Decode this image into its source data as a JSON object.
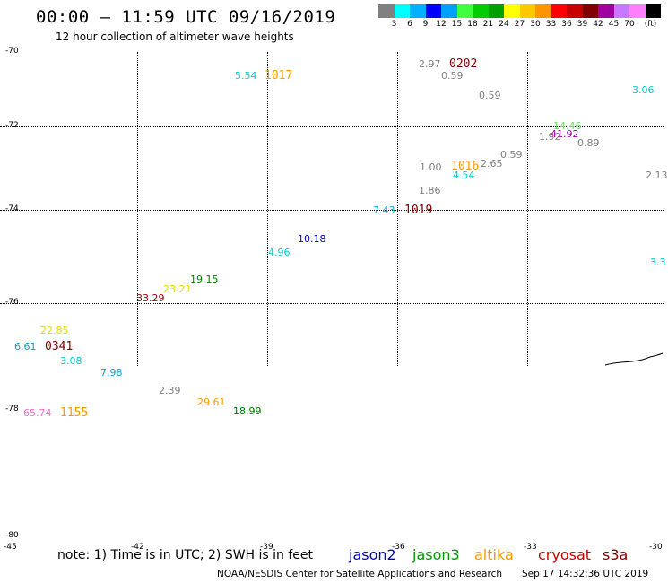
{
  "title": "00:00 – 11:59 UTC 09/16/2019",
  "subtitle": "12 hour collection of altimeter wave heights",
  "legend": {
    "colors": [
      "#808080",
      "#00ffff",
      "#00b0ff",
      "#0000ff",
      "#00a0ff",
      "#40ff40",
      "#00cc00",
      "#00a000",
      "#ffff00",
      "#ffc800",
      "#ff9600",
      "#ff0000",
      "#c80000",
      "#800000",
      "#a000a0",
      "#c878ff",
      "#ff80ff",
      "#000000"
    ],
    "labels": [
      "3",
      "6",
      "9",
      "12",
      "15",
      "18",
      "21",
      "24",
      "27",
      "30",
      "33",
      "36",
      "39",
      "42",
      "45",
      "70",
      "(ft)"
    ],
    "unit": "(ft)"
  },
  "axis": {
    "lat_labels": [
      "-70",
      "-72",
      "-74",
      "-76",
      "-78",
      "-80"
    ],
    "lon_labels": [
      "-45",
      "-42",
      "-39",
      "-36",
      "-33",
      "-30"
    ]
  },
  "observations": [
    {
      "text": "5.54",
      "color": "#00cccc"
    },
    {
      "text": "2.97",
      "color": "#808080"
    },
    {
      "text": "0.59",
      "color": "#808080"
    },
    {
      "text": "0.59",
      "color": "#808080"
    },
    {
      "text": "3.06",
      "color": "#00cccc"
    },
    {
      "text": "14.46",
      "color": "#66dd66"
    },
    {
      "text": "1.92",
      "color": "#808080"
    },
    {
      "text": "41.92",
      "color": "#a000a0"
    },
    {
      "text": "0.89",
      "color": "#808080"
    },
    {
      "text": "0.59",
      "color": "#808080"
    },
    {
      "text": "2.65",
      "color": "#808080"
    },
    {
      "text": "1.00",
      "color": "#808080"
    },
    {
      "text": "4.54",
      "color": "#00cccc"
    },
    {
      "text": "2.13",
      "color": "#808080"
    },
    {
      "text": "1.86",
      "color": "#808080"
    },
    {
      "text": "7.43",
      "color": "#00b0d0"
    },
    {
      "text": "10.18",
      "color": "#0000cc"
    },
    {
      "text": "4.96",
      "color": "#00cccc"
    },
    {
      "text": "3.3",
      "color": "#00cccc"
    },
    {
      "text": "19.15",
      "color": "#008000"
    },
    {
      "text": "23.21",
      "color": "#dddd00"
    },
    {
      "text": "33.29",
      "color": "#990000"
    },
    {
      "text": "22.85",
      "color": "#dddd00"
    },
    {
      "text": "6.61",
      "color": "#00a0d0"
    },
    {
      "text": "3.08",
      "color": "#00cccc"
    },
    {
      "text": "7.98",
      "color": "#00a0d0"
    },
    {
      "text": "2.39",
      "color": "#808080"
    },
    {
      "text": "29.61",
      "color": "#ff9900"
    },
    {
      "text": "18.99",
      "color": "#008000"
    },
    {
      "text": "65.74",
      "color": "#ff66cc"
    }
  ],
  "time_labels": [
    {
      "text": "1017",
      "color": "#ff9900"
    },
    {
      "text": "0202",
      "color": "#800000"
    },
    {
      "text": "1016",
      "color": "#ff9900"
    },
    {
      "text": "1019",
      "color": "#800000"
    },
    {
      "text": "0341",
      "color": "#800000"
    },
    {
      "text": "1155",
      "color": "#ff9900"
    }
  ],
  "footer": {
    "note": "note: 1) Time is in UTC; 2) SWH is in feet",
    "satellites": [
      {
        "name": "jason2",
        "color": "#0000cc"
      },
      {
        "name": "jason3",
        "color": "#009900"
      },
      {
        "name": "altika",
        "color": "#ff9900"
      },
      {
        "name": "cryosat",
        "color": "#cc0000"
      },
      {
        "name": "s3a",
        "color": "#800000"
      }
    ],
    "credit": "NOAA/NESDIS Center for Satellite Applications and Research",
    "timestamp": "Sep 17 14:32:36 UTC 2019"
  }
}
